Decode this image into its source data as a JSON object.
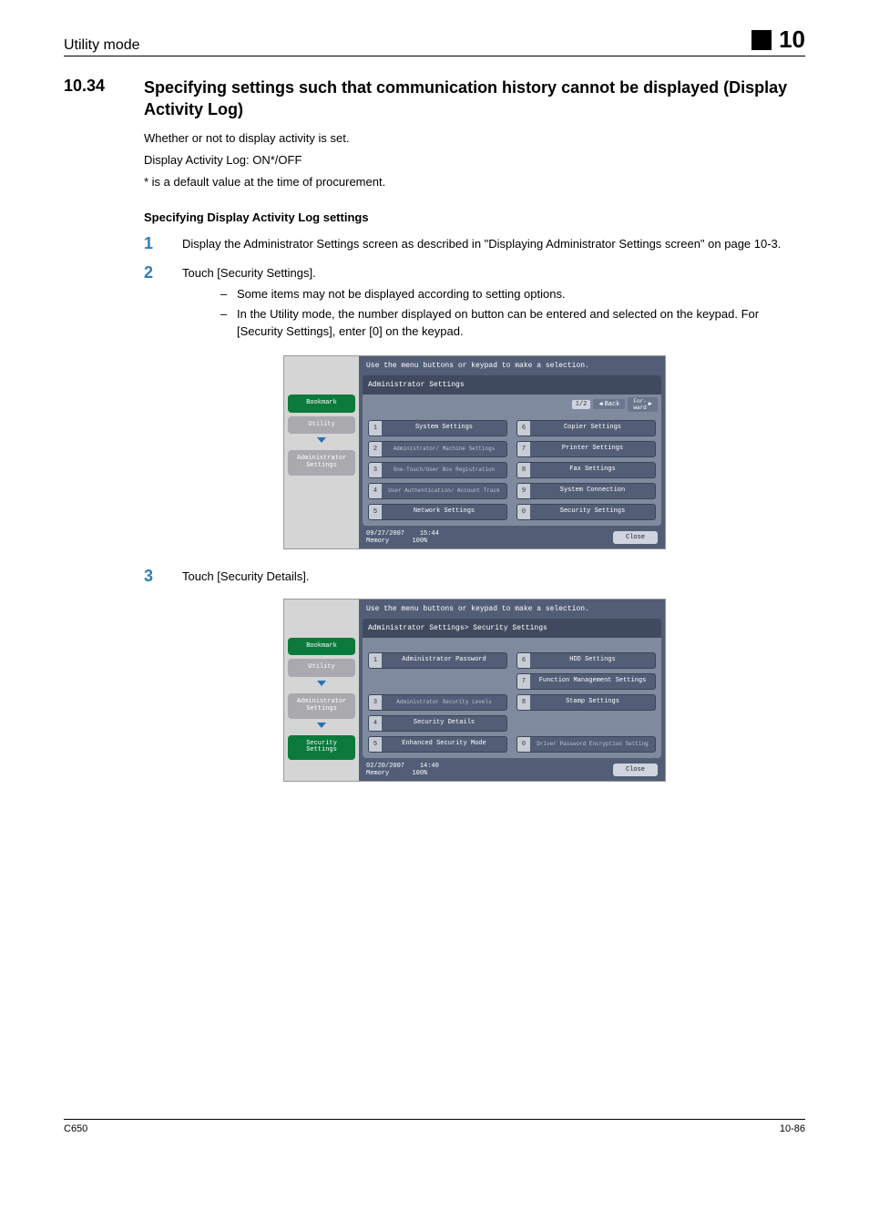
{
  "header": {
    "left": "Utility mode",
    "chapter": "10"
  },
  "section": {
    "number": "10.34",
    "title": "Specifying settings such that communication history cannot be displayed (Display Activity Log)"
  },
  "intro_paras": [
    "Whether or not to display activity is set.",
    "Display Activity Log: ON*/OFF",
    "* is a default value at the time of procurement."
  ],
  "sub_heading": "Specifying Display Activity Log settings",
  "steps": [
    {
      "n": "1",
      "text": "Display the Administrator Settings screen as described in \"Displaying Administrator Settings screen\" on page 10-3.",
      "bullets": []
    },
    {
      "n": "2",
      "text": "Touch [Security Settings].",
      "bullets": [
        "Some items may not be displayed according to setting options.",
        "In the Utility mode, the number displayed on button can be entered and selected on the keypad. For [Security Settings], enter [0] on the keypad."
      ]
    },
    {
      "n": "3",
      "text": "Touch [Security Details].",
      "bullets": []
    }
  ],
  "panel1": {
    "instruction": "Use the menu buttons or keypad to make a selection.",
    "breadcrumb": "Administrator Settings",
    "page_ind": "1/2",
    "back_label": "Back",
    "tabs": [
      {
        "label": "Bookmark",
        "style": "green",
        "arrow": false
      },
      {
        "label": "Utility",
        "style": "grey",
        "arrow": true
      },
      {
        "label": "Administrator Settings",
        "style": "grey",
        "arrow": false
      }
    ],
    "menu_left": [
      {
        "n": "1",
        "l": "System Settings"
      },
      {
        "n": "2",
        "l": "Administrator/ Machine Settings",
        "dim": true
      },
      {
        "n": "3",
        "l": "One-Touch/User Box Registration",
        "dim": true
      },
      {
        "n": "4",
        "l": "User Authentication/ Account Track",
        "dim": true
      },
      {
        "n": "5",
        "l": "Network Settings"
      }
    ],
    "menu_right": [
      {
        "n": "6",
        "l": "Copier Settings"
      },
      {
        "n": "7",
        "l": "Printer Settings"
      },
      {
        "n": "8",
        "l": "Fax Settings"
      },
      {
        "n": "9",
        "l": "System Connection"
      },
      {
        "n": "0",
        "l": "Security Settings"
      }
    ],
    "status_date": "09/27/2007",
    "status_time": "15:44",
    "status_mem": "Memory",
    "status_pct": "100%",
    "close": "Close"
  },
  "panel2": {
    "instruction": "Use the menu buttons or keypad to make a selection.",
    "breadcrumb": "Administrator Settings> Security Settings",
    "tabs": [
      {
        "label": "Bookmark",
        "style": "green",
        "arrow": false
      },
      {
        "label": "Utility",
        "style": "grey",
        "arrow": true
      },
      {
        "label": "Administrator Settings",
        "style": "grey",
        "arrow": true
      },
      {
        "label": "Security Settings",
        "style": "green",
        "arrow": false
      }
    ],
    "menu_left": [
      {
        "n": "1",
        "l": "Administrator Password"
      },
      {
        "n": "",
        "l": "",
        "empty": true
      },
      {
        "n": "3",
        "l": "Administrator Security Levels",
        "dim": true
      },
      {
        "n": "4",
        "l": "Security Details"
      },
      {
        "n": "5",
        "l": "Enhanced Security Mode"
      }
    ],
    "menu_right": [
      {
        "n": "6",
        "l": "HDD Settings"
      },
      {
        "n": "7",
        "l": "Function Management Settings"
      },
      {
        "n": "8",
        "l": "Stamp Settings"
      },
      {
        "n": "",
        "l": "",
        "empty": true
      },
      {
        "n": "0",
        "l": "Driver Password Encryption Setting",
        "dim": true
      }
    ],
    "status_date": "02/20/2007",
    "status_time": "14:40",
    "status_mem": "Memory",
    "status_pct": "100%",
    "close": "Close"
  },
  "footer": {
    "left": "C650",
    "right": "10-86"
  }
}
